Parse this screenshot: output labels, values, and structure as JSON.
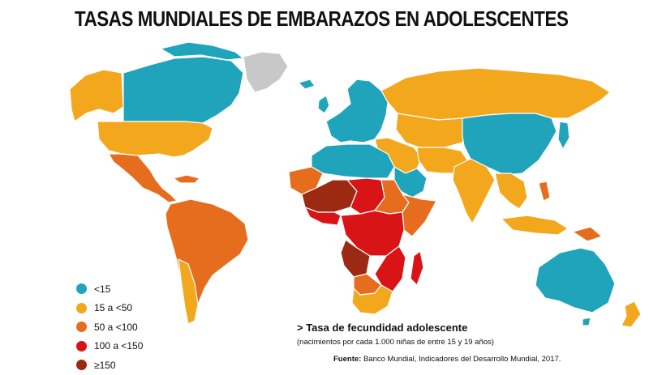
{
  "title": "TASAS MUNDIALES DE EMBARAZOS EN ADOLESCENTES",
  "colors": {
    "lt15": "#20a4bb",
    "r15_50": "#f2a71c",
    "r50_100": "#e66d1d",
    "r100_150": "#d91417",
    "gte150": "#9c2a12",
    "nodata": "#c8c8c8",
    "border": "#ffffff"
  },
  "legend": [
    {
      "label": "<15",
      "color": "#20a4bb"
    },
    {
      "label": "15 a <50",
      "color": "#f2a71c"
    },
    {
      "label": "50 a <100",
      "color": "#e66d1d"
    },
    {
      "label": "100 a <150",
      "color": "#d91417"
    },
    {
      "label": "≥150",
      "color": "#9c2a12"
    }
  ],
  "note": {
    "title": "> Tasa de fecundidad adolescente",
    "subtitle": "(nacimientos por cada 1.000 niñas de entre 15 y 19 años)"
  },
  "source": {
    "label": "Fuente:",
    "text": " Banco Mundial, Indicadores del Desarrollo Mundial, 2017."
  }
}
